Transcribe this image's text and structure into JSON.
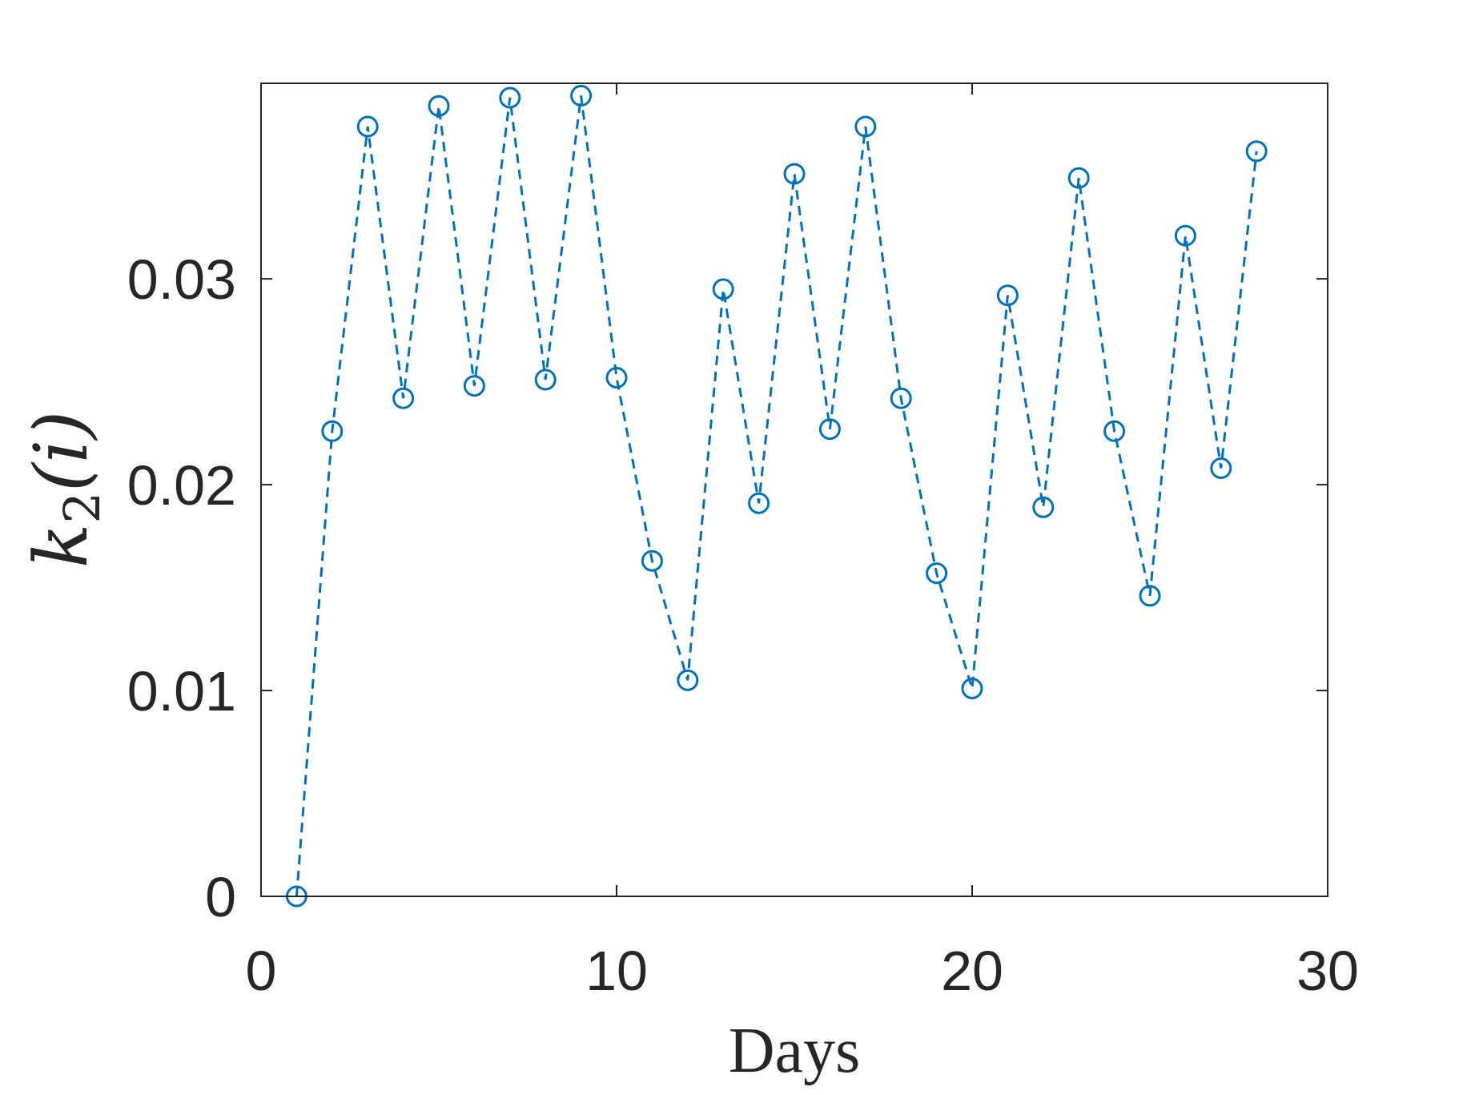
{
  "chart_data": {
    "type": "line",
    "xlabel": "Days",
    "ylabel": "k₂(i)",
    "ylabel_math": {
      "base": "k",
      "subscript": "2",
      "argument": "(i)"
    },
    "xlim": [
      0,
      30
    ],
    "ylim": [
      0,
      0.0395
    ],
    "x_ticks": [
      0,
      10,
      20,
      30
    ],
    "x_tick_labels": [
      "0",
      "10",
      "20",
      "30"
    ],
    "y_ticks": [
      0,
      0.01,
      0.02,
      0.03
    ],
    "y_tick_labels": [
      "0",
      "0.01",
      "0.02",
      "0.03"
    ],
    "grid": false,
    "legend": "none",
    "series": [
      {
        "line_style": "dashed",
        "marker": "circle",
        "color": "#0072BD",
        "x": [
          1,
          2,
          3,
          4,
          5,
          6,
          7,
          8,
          9,
          10,
          11,
          12,
          13,
          14,
          15,
          16,
          17,
          18,
          19,
          20,
          21,
          22,
          23,
          24,
          25,
          26,
          27,
          28
        ],
        "y": [
          0.0,
          0.0226,
          0.0374,
          0.0242,
          0.0384,
          0.0248,
          0.0388,
          0.0251,
          0.0389,
          0.0252,
          0.0163,
          0.0105,
          0.0295,
          0.0191,
          0.0351,
          0.0227,
          0.0374,
          0.0242,
          0.0157,
          0.0101,
          0.0292,
          0.0189,
          0.0349,
          0.0226,
          0.0146,
          0.0321,
          0.0208,
          0.0362
        ]
      }
    ]
  }
}
